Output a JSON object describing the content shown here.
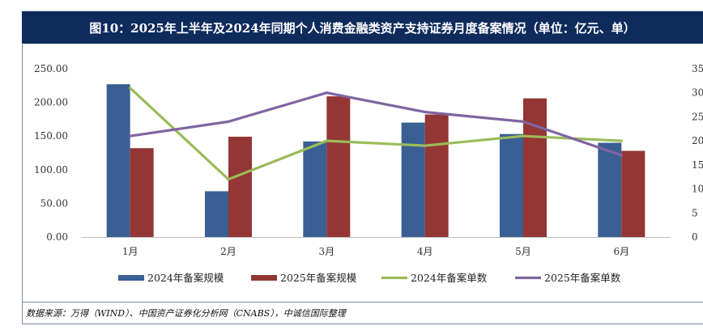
{
  "header": {
    "title": "图10：2025年上半年及2024年同期个人消费金融类资产支持证券月度备案情况（单位：亿元、单）"
  },
  "source": {
    "text": "数据来源：万得（WIND）、中国资产证券化分析网（CNABS），中诚信国际整理"
  },
  "colors": {
    "bar_2024": "#3a5f93",
    "bar_2025": "#943634",
    "line_2024": "#9bbb59",
    "line_2025": "#8064a2",
    "title_bg": "#0f2b5c"
  },
  "chart_data": {
    "type": "bar",
    "categories": [
      "1月",
      "2月",
      "3月",
      "4月",
      "5月",
      "6月"
    ],
    "series": [
      {
        "name": "2024年备案规模",
        "kind": "bar",
        "axis": "left",
        "values": [
          227,
          68,
          142,
          170,
          153,
          140
        ]
      },
      {
        "name": "2025年备案规模",
        "kind": "bar",
        "axis": "left",
        "values": [
          132,
          149,
          209,
          182,
          206,
          128
        ]
      },
      {
        "name": "2024年备案单数",
        "kind": "line",
        "axis": "right",
        "values": [
          31,
          12,
          20,
          19,
          21,
          20
        ]
      },
      {
        "name": "2025年备案单数",
        "kind": "line",
        "axis": "right",
        "values": [
          21,
          24,
          30,
          26,
          24,
          17
        ]
      }
    ],
    "y_left": {
      "range": [
        0,
        250
      ],
      "ticks": [
        "0.00",
        "50.00",
        "100.00",
        "150.00",
        "200.00",
        "250.00"
      ]
    },
    "y_right": {
      "range": [
        0,
        35
      ],
      "ticks": [
        "0",
        "5",
        "10",
        "15",
        "20",
        "25",
        "30",
        "35"
      ]
    },
    "grid": false,
    "legend": "bottom"
  }
}
